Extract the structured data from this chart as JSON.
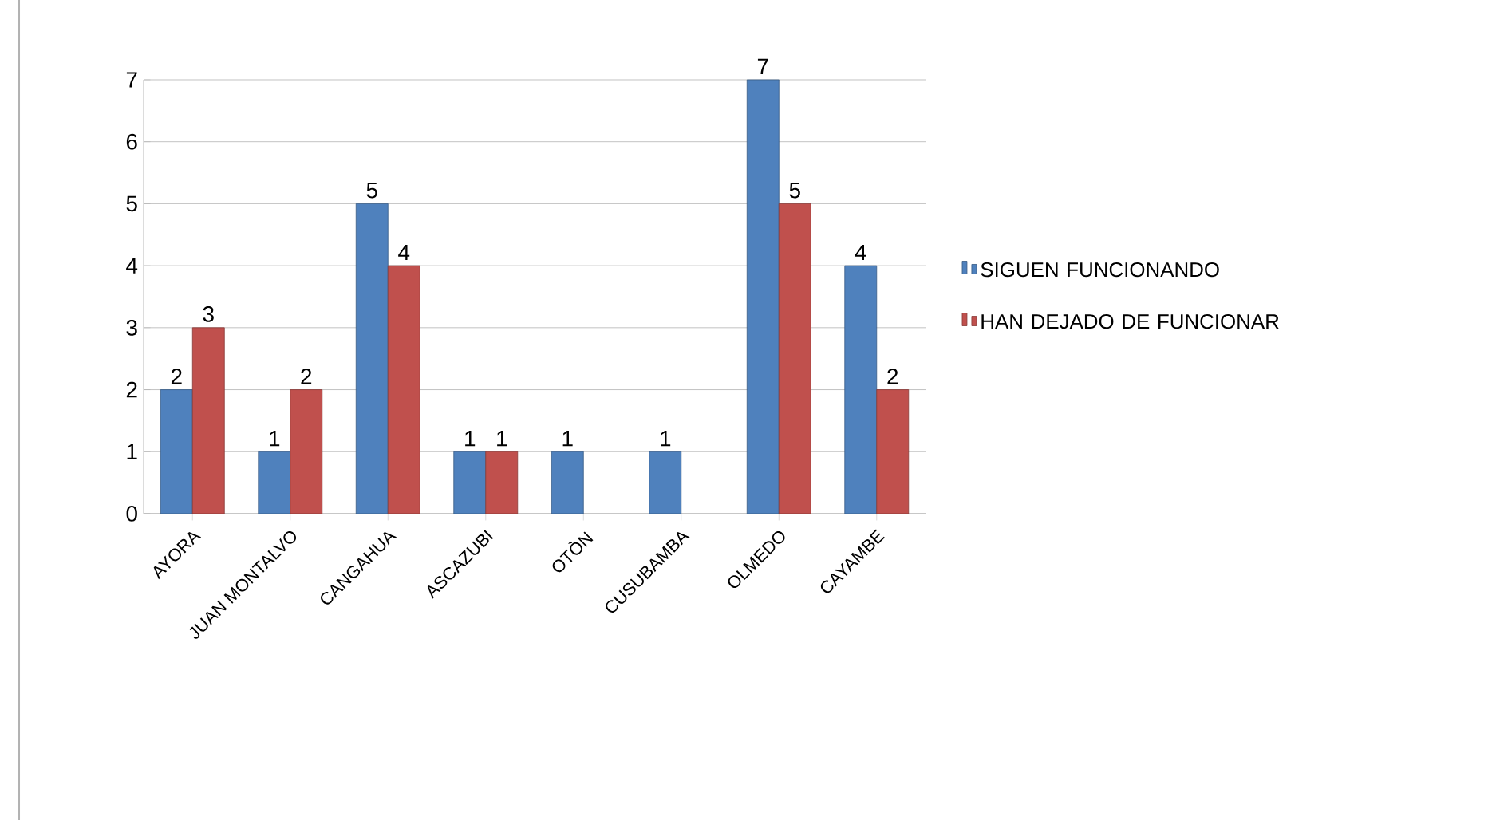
{
  "chart_data": {
    "type": "bar",
    "categories": [
      "AYORA",
      "JUAN MONTALVO",
      "CANGAHUA",
      "ASCAZUBI",
      "OTÒN",
      "CUSUBAMBA",
      "OLMEDO",
      "CAYAMBE"
    ],
    "series": [
      {
        "name": "SIGUEN FUNCIONANDO",
        "color": "#4f81bd",
        "values": [
          2,
          1,
          5,
          1,
          1,
          1,
          7,
          4
        ]
      },
      {
        "name": "HAN DEJADO DE FUNCIONAR",
        "color": "#c0504d",
        "values": [
          3,
          2,
          4,
          1,
          null,
          null,
          5,
          2
        ]
      }
    ],
    "ylim": [
      0,
      7
    ],
    "yticks": [
      0,
      1,
      2,
      3,
      4,
      5,
      6,
      7
    ],
    "grid": "y",
    "legend": "right",
    "data_labels": true
  }
}
